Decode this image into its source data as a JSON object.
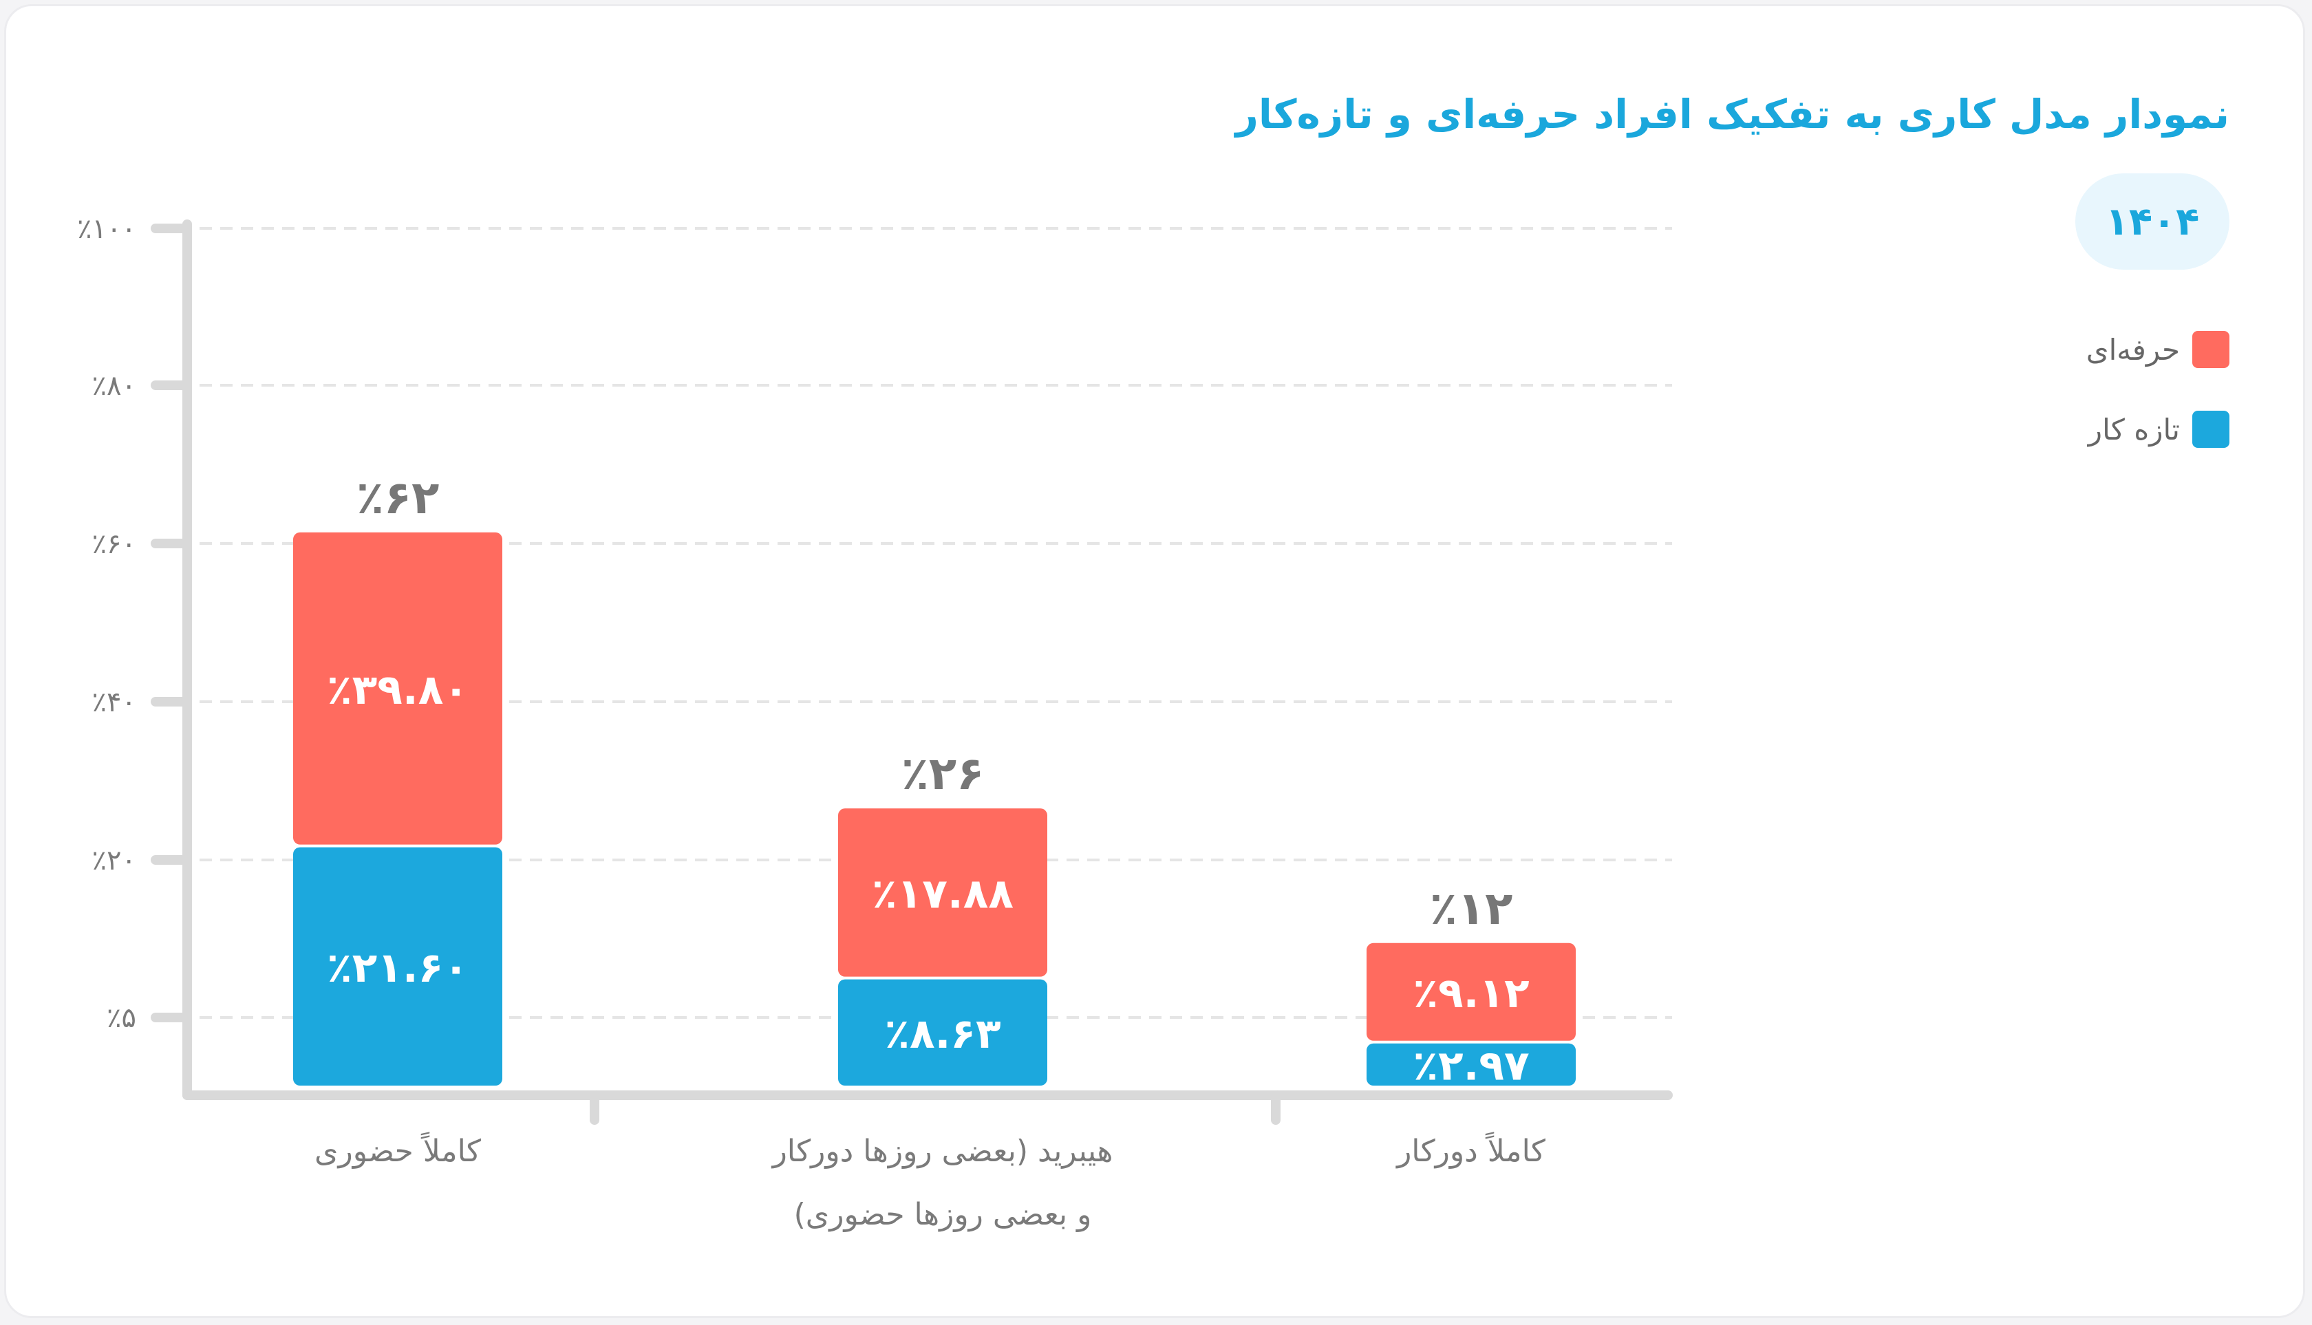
{
  "title": "نمودار مدل کاری به تفکیک افراد حرفه‌ای و تازه‌کار",
  "year": "۱۴۰۴",
  "colors": {
    "professional": "#ff6b5f",
    "newcomer": "#1ca8dd",
    "axis": "#d9d9d9",
    "grid": "#e5e5e5",
    "total": "#777777",
    "tick": "#7a7a7a"
  },
  "legend": [
    {
      "label": "حرفه‌ای",
      "color": "#ff6b5f"
    },
    {
      "label": "تازه کار",
      "color": "#1ca8dd"
    }
  ],
  "chart_data": {
    "type": "bar",
    "stacked": true,
    "yticks": [
      {
        "value": 5,
        "label": "٪۵"
      },
      {
        "value": 20,
        "label": "٪۲۰"
      },
      {
        "value": 40,
        "label": "٪۴۰"
      },
      {
        "value": 60,
        "label": "٪۶۰"
      },
      {
        "value": 80,
        "label": "٪۸۰"
      },
      {
        "value": 100,
        "label": "٪۱۰۰"
      }
    ],
    "ylim": [
      0,
      100
    ],
    "grid": true,
    "legend_position": "top-right",
    "categories": [
      {
        "lines": [
          "کاملاً حضوری"
        ]
      },
      {
        "lines": [
          "هیبرید (بعضی روزها دورکار",
          "و بعضی روزها حضوری)"
        ]
      },
      {
        "lines": [
          "کاملاً دورکار"
        ]
      }
    ],
    "series": [
      {
        "name": "تازه کار",
        "color": "#1ca8dd",
        "values": [
          21.6,
          8.63,
          2.97
        ],
        "labels": [
          "٪۲۱.۶۰",
          "٪۸.۶۳",
          "٪۲.۹۷"
        ]
      },
      {
        "name": "حرفه‌ای",
        "color": "#ff6b5f",
        "values": [
          39.8,
          17.88,
          9.12
        ],
        "labels": [
          "٪۳۹.۸۰",
          "٪۱۷.۸۸",
          "٪۹.۱۲"
        ]
      }
    ],
    "totals": [
      {
        "value": 62,
        "label": "٪۶۲"
      },
      {
        "value": 26,
        "label": "٪۲۶"
      },
      {
        "value": 12,
        "label": "٪۱۲"
      }
    ]
  }
}
